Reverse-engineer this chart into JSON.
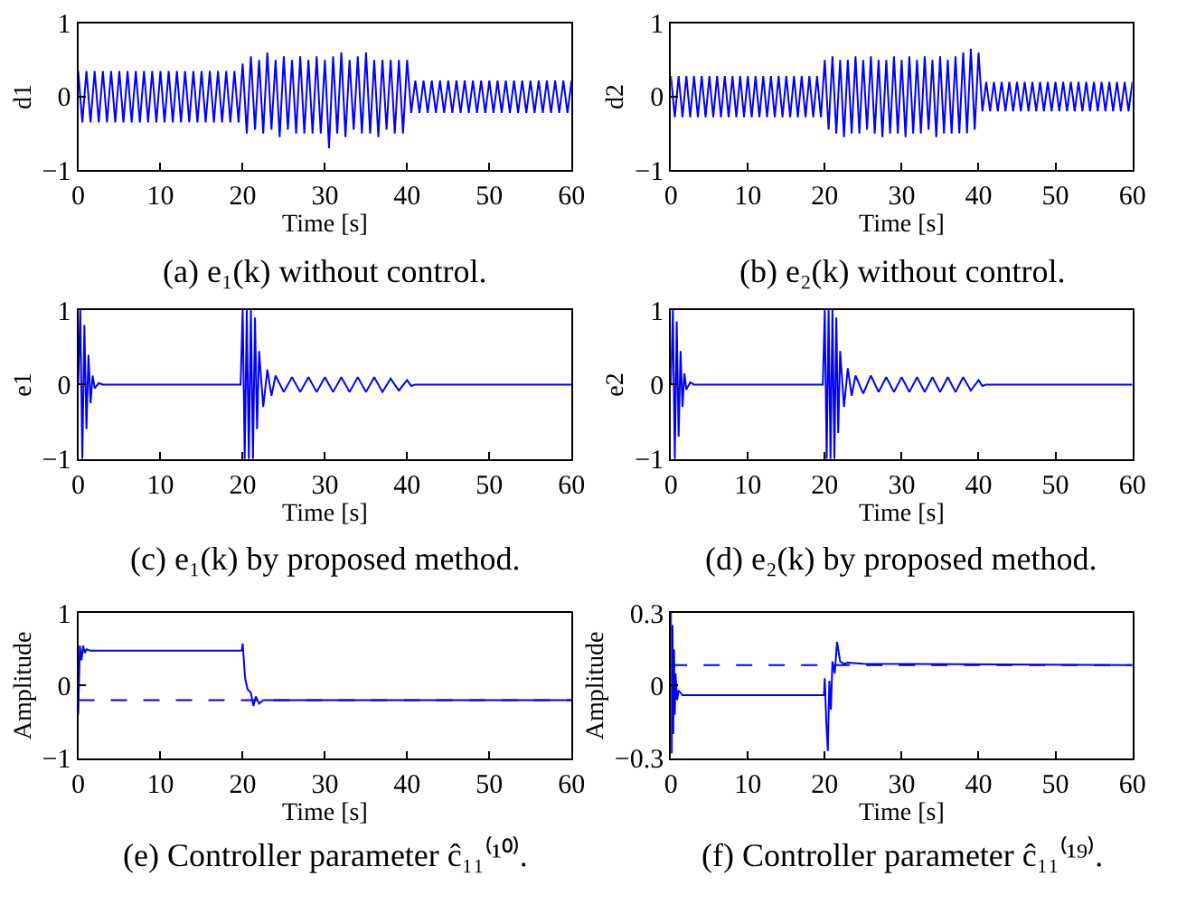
{
  "chart_data": [
    {
      "type": "line",
      "title": "(a) e₁(k) without control.",
      "xlabel": "Time [s]",
      "ylabel": "d1",
      "xlim": [
        0,
        60
      ],
      "xticks": [
        0,
        10,
        20,
        30,
        40,
        50,
        60
      ],
      "ylim": [
        -1,
        1
      ],
      "yticks": [
        -1,
        0,
        1
      ],
      "x": [
        0,
        0.5,
        1,
        1.5,
        2,
        2.5,
        3,
        3.5,
        4,
        4.5,
        5,
        5.5,
        6,
        6.5,
        7,
        7.5,
        8,
        8.5,
        9,
        9.5,
        10,
        10.5,
        11,
        11.5,
        12,
        12.5,
        13,
        13.5,
        14,
        14.5,
        15,
        15.5,
        16,
        16.5,
        17,
        17.5,
        18,
        18.5,
        19,
        19.5,
        20,
        20.5,
        21,
        21.5,
        22,
        22.5,
        23,
        23.5,
        24,
        24.5,
        25,
        25.5,
        26,
        26.5,
        27,
        27.5,
        28,
        28.5,
        29,
        29.5,
        30,
        30.5,
        31,
        31.5,
        32,
        32.5,
        33,
        33.5,
        34,
        34.5,
        35,
        35.5,
        36,
        36.5,
        37,
        37.5,
        38,
        38.5,
        39,
        39.5,
        40,
        40.5,
        41,
        41.5,
        42,
        42.5,
        43,
        43.5,
        44,
        44.5,
        45,
        45.5,
        46,
        46.5,
        47,
        47.5,
        48,
        48.5,
        49,
        49.5,
        50,
        50.5,
        51,
        51.5,
        52,
        52.5,
        53,
        53.5,
        54,
        54.5,
        55,
        55.5,
        56,
        56.5,
        57,
        57.5,
        58,
        58.5,
        59,
        59.5,
        60
      ],
      "series": [
        {
          "color": "#0000ff",
          "values": [
            0.35,
            -0.35,
            0.35,
            -0.35,
            0.35,
            -0.35,
            0.35,
            -0.35,
            0.35,
            -0.35,
            0.35,
            -0.35,
            0.35,
            -0.35,
            0.35,
            -0.35,
            0.35,
            -0.35,
            0.35,
            -0.35,
            0.35,
            -0.35,
            0.35,
            -0.35,
            0.35,
            -0.35,
            0.35,
            -0.35,
            0.35,
            -0.35,
            0.35,
            -0.35,
            0.35,
            -0.35,
            0.35,
            -0.35,
            0.35,
            -0.35,
            0.35,
            -0.35,
            0.45,
            -0.5,
            0.55,
            -0.45,
            0.5,
            -0.5,
            0.6,
            -0.45,
            0.5,
            -0.55,
            0.55,
            -0.45,
            0.5,
            -0.5,
            0.55,
            -0.5,
            0.5,
            -0.5,
            0.55,
            -0.5,
            0.5,
            -0.7,
            0.55,
            -0.5,
            0.6,
            -0.55,
            0.5,
            -0.45,
            0.55,
            -0.5,
            0.6,
            -0.5,
            0.5,
            -0.55,
            0.5,
            -0.45,
            0.5,
            -0.5,
            0.5,
            -0.5,
            0.5,
            -0.22,
            0.22,
            -0.22,
            0.22,
            -0.22,
            0.22,
            -0.22,
            0.22,
            -0.22,
            0.22,
            -0.22,
            0.22,
            -0.22,
            0.22,
            -0.22,
            0.22,
            -0.22,
            0.22,
            -0.22,
            0.22,
            -0.22,
            0.22,
            -0.22,
            0.22,
            -0.22,
            0.22,
            -0.22,
            0.22,
            -0.22,
            0.22,
            -0.22,
            0.22,
            -0.22,
            0.22,
            -0.22,
            0.22,
            -0.22,
            0.22,
            -0.22,
            0.22
          ]
        }
      ]
    },
    {
      "type": "line",
      "title": "(b) e₂(k) without control.",
      "xlabel": "Time [s]",
      "ylabel": "d2",
      "xlim": [
        0,
        60
      ],
      "xticks": [
        0,
        10,
        20,
        30,
        40,
        50,
        60
      ],
      "ylim": [
        -1,
        1
      ],
      "yticks": [
        -1,
        0,
        1
      ],
      "x": [
        0,
        0.5,
        1,
        1.5,
        2,
        2.5,
        3,
        3.5,
        4,
        4.5,
        5,
        5.5,
        6,
        6.5,
        7,
        7.5,
        8,
        8.5,
        9,
        9.5,
        10,
        10.5,
        11,
        11.5,
        12,
        12.5,
        13,
        13.5,
        14,
        14.5,
        15,
        15.5,
        16,
        16.5,
        17,
        17.5,
        18,
        18.5,
        19,
        19.5,
        20,
        20.5,
        21,
        21.5,
        22,
        22.5,
        23,
        23.5,
        24,
        24.5,
        25,
        25.5,
        26,
        26.5,
        27,
        27.5,
        28,
        28.5,
        29,
        29.5,
        30,
        30.5,
        31,
        31.5,
        32,
        32.5,
        33,
        33.5,
        34,
        34.5,
        35,
        35.5,
        36,
        36.5,
        37,
        37.5,
        38,
        38.5,
        39,
        39.5,
        40,
        40.5,
        41,
        41.5,
        42,
        42.5,
        43,
        43.5,
        44,
        44.5,
        45,
        45.5,
        46,
        46.5,
        47,
        47.5,
        48,
        48.5,
        49,
        49.5,
        50,
        50.5,
        51,
        51.5,
        52,
        52.5,
        53,
        53.5,
        54,
        54.5,
        55,
        55.5,
        56,
        56.5,
        57,
        57.5,
        58,
        58.5,
        59,
        59.5,
        60
      ],
      "series": [
        {
          "color": "#0000ff",
          "values": [
            0.28,
            -0.28,
            0.28,
            -0.28,
            0.28,
            -0.28,
            0.28,
            -0.28,
            0.28,
            -0.28,
            0.28,
            -0.28,
            0.28,
            -0.28,
            0.28,
            -0.28,
            0.28,
            -0.28,
            0.28,
            -0.28,
            0.28,
            -0.28,
            0.28,
            -0.28,
            0.28,
            -0.28,
            0.28,
            -0.28,
            0.28,
            -0.28,
            0.28,
            -0.28,
            0.28,
            -0.28,
            0.28,
            -0.28,
            0.28,
            -0.28,
            0.28,
            -0.28,
            0.5,
            -0.45,
            0.55,
            -0.5,
            0.5,
            -0.55,
            0.5,
            -0.5,
            0.55,
            -0.5,
            0.5,
            -0.45,
            0.55,
            -0.5,
            0.5,
            -0.55,
            0.5,
            -0.5,
            0.55,
            -0.5,
            0.5,
            -0.55,
            0.55,
            -0.5,
            0.5,
            -0.5,
            0.55,
            -0.45,
            0.5,
            -0.55,
            0.55,
            -0.5,
            0.5,
            -0.5,
            0.55,
            -0.5,
            0.6,
            -0.5,
            0.65,
            -0.45,
            0.6,
            -0.2,
            0.2,
            -0.2,
            0.2,
            -0.2,
            0.2,
            -0.2,
            0.2,
            -0.2,
            0.2,
            -0.2,
            0.2,
            -0.2,
            0.2,
            -0.2,
            0.2,
            -0.2,
            0.2,
            -0.2,
            0.2,
            -0.2,
            0.2,
            -0.2,
            0.2,
            -0.2,
            0.2,
            -0.2,
            0.2,
            -0.2,
            0.2,
            -0.2,
            0.2,
            -0.2,
            0.2,
            -0.2,
            0.2,
            -0.2,
            0.2,
            -0.2,
            0.2
          ]
        }
      ]
    },
    {
      "type": "line",
      "title": "(c) e₁(k) by proposed method.",
      "xlabel": "Time [s]",
      "ylabel": "e1",
      "xlim": [
        0,
        60
      ],
      "xticks": [
        0,
        10,
        20,
        30,
        40,
        50,
        60
      ],
      "ylim": [
        -1,
        1
      ],
      "yticks": [
        -1,
        0,
        1
      ],
      "x": [
        0,
        0.25,
        0.5,
        0.75,
        1,
        1.25,
        1.5,
        1.75,
        2,
        2.5,
        3,
        5,
        10,
        15,
        19.75,
        20,
        20.25,
        20.5,
        20.75,
        21,
        21.25,
        21.5,
        21.75,
        22,
        22.5,
        23,
        23.5,
        24,
        25,
        26,
        27,
        28,
        29,
        30,
        31,
        32,
        33,
        34,
        35,
        36,
        37,
        38,
        39,
        40,
        40.5,
        41,
        50,
        60
      ],
      "series": [
        {
          "color": "#0000ff",
          "values": [
            0,
            1,
            -1,
            0.8,
            -0.6,
            0.4,
            -0.25,
            0.12,
            -0.05,
            0.02,
            0,
            0,
            0,
            0,
            0,
            1,
            -1,
            1,
            -1,
            1,
            -1,
            0.9,
            -0.6,
            0.45,
            -0.3,
            0.2,
            -0.15,
            0.12,
            -0.1,
            0.1,
            -0.1,
            0.1,
            -0.1,
            0.1,
            -0.1,
            0.1,
            -0.1,
            0.1,
            -0.1,
            0.1,
            -0.1,
            0.08,
            -0.08,
            0.06,
            -0.02,
            0,
            0,
            0
          ]
        }
      ]
    },
    {
      "type": "line",
      "title": "(d) e₂(k) by proposed method.",
      "xlabel": "Time [s]",
      "ylabel": "e2",
      "xlim": [
        0,
        60
      ],
      "xticks": [
        0,
        10,
        20,
        30,
        40,
        50,
        60
      ],
      "ylim": [
        -1,
        1
      ],
      "yticks": [
        -1,
        0,
        1
      ],
      "x": [
        0,
        0.25,
        0.5,
        0.75,
        1,
        1.25,
        1.5,
        1.75,
        2,
        2.5,
        3,
        5,
        10,
        15,
        19.75,
        20,
        20.25,
        20.5,
        20.75,
        21,
        21.25,
        21.5,
        21.75,
        22,
        22.5,
        23,
        23.5,
        24,
        25,
        26,
        27,
        28,
        29,
        30,
        31,
        32,
        33,
        34,
        35,
        36,
        37,
        38,
        39,
        40,
        40.5,
        41,
        50,
        60
      ],
      "series": [
        {
          "color": "#0000ff",
          "values": [
            0,
            1,
            -1,
            0.85,
            -0.7,
            0.45,
            -0.3,
            0.15,
            -0.07,
            0.03,
            0,
            0,
            0,
            0,
            0,
            1,
            -1,
            1,
            -1,
            1,
            -1,
            0.9,
            -0.65,
            0.45,
            -0.3,
            0.22,
            -0.15,
            0.12,
            -0.12,
            0.12,
            -0.1,
            0.1,
            -0.1,
            0.1,
            -0.1,
            0.1,
            -0.1,
            0.1,
            -0.1,
            0.1,
            -0.1,
            0.1,
            -0.08,
            0.06,
            -0.02,
            0,
            0,
            0
          ]
        }
      ]
    },
    {
      "type": "line",
      "title": "(e) Controller parameter ĉ₁₁⁽¹⁰⁾.",
      "xlabel": "Time [s]",
      "ylabel": "Amplitude",
      "xlim": [
        0,
        60
      ],
      "xticks": [
        0,
        10,
        20,
        30,
        40,
        50,
        60
      ],
      "ylim": [
        -1,
        1
      ],
      "yticks": [
        -1,
        0,
        1
      ],
      "series": [
        {
          "color": "#0000ff",
          "line_style": "solid",
          "x": [
            0,
            0.2,
            0.4,
            0.6,
            0.8,
            1,
            1.5,
            2,
            19.9,
            20,
            20.3,
            20.6,
            21,
            21.3,
            21.6,
            22,
            22.5,
            23,
            60
          ],
          "values": [
            -0.4,
            0.55,
            0.35,
            0.55,
            0.45,
            0.5,
            0.48,
            0.48,
            0.48,
            0.58,
            0.1,
            -0.05,
            -0.1,
            -0.28,
            -0.15,
            -0.25,
            -0.2,
            -0.2,
            -0.2
          ]
        },
        {
          "color": "#0000ff",
          "line_style": "dashed",
          "x": [
            0,
            60
          ],
          "values": [
            -0.2,
            -0.2
          ]
        }
      ]
    },
    {
      "type": "line",
      "title": "(f) Controller parameter ĉ₁₁⁽¹⁹⁾.",
      "xlabel": "Time [s]",
      "ylabel": "Amplitude",
      "xlim": [
        0,
        60
      ],
      "xticks": [
        0,
        10,
        20,
        30,
        40,
        50,
        60
      ],
      "ylim": [
        -0.3,
        0.3
      ],
      "yticks": [
        -0.3,
        0,
        0.3
      ],
      "series": [
        {
          "color": "#0000ff",
          "line_style": "solid",
          "x": [
            0,
            0.1,
            0.2,
            0.3,
            0.4,
            0.5,
            0.6,
            0.8,
            1,
            1.5,
            2,
            19.9,
            20,
            20.2,
            20.4,
            20.6,
            20.8,
            21,
            21.3,
            21.6,
            22,
            22.5,
            23,
            25,
            60
          ],
          "values": [
            0.3,
            -0.28,
            0.25,
            -0.2,
            0.15,
            -0.12,
            0.05,
            -0.06,
            -0.02,
            -0.04,
            -0.04,
            -0.04,
            0.03,
            -0.15,
            -0.27,
            0.02,
            -0.1,
            0.1,
            0.05,
            0.18,
            0.1,
            0.09,
            0.095,
            0.09,
            0.085
          ]
        },
        {
          "color": "#0000ff",
          "line_style": "dashed",
          "x": [
            0,
            60
          ],
          "values": [
            0.085,
            0.085
          ]
        }
      ]
    }
  ]
}
